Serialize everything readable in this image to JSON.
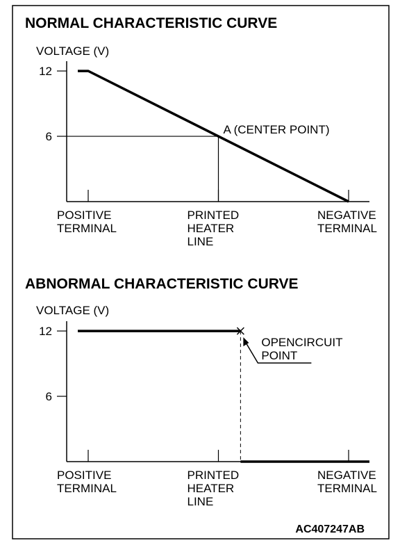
{
  "chart_data": [
    {
      "type": "line",
      "title": "NORMAL CHARACTERISTIC CURVE",
      "y_label": "VOLTAGE (V)",
      "xlim": [
        -0.16,
        2.16
      ],
      "xticks": [
        {
          "value": 0,
          "label": "POSITIVE TERMINAL"
        },
        {
          "value": 1,
          "label": "PRINTED HEATER LINE"
        },
        {
          "value": 2,
          "label": "NEGATIVE TERMINAL"
        }
      ],
      "ylim": [
        0,
        12.9
      ],
      "yticks": [
        6,
        12
      ],
      "series": [
        {
          "name": null,
          "color": "#000000",
          "x": [
            -0.08,
            0,
            2
          ],
          "values": [
            12,
            12,
            0
          ]
        }
      ],
      "annotations": [
        {
          "text": "A (CENTER POINT)",
          "x": 1,
          "y": 6
        }
      ]
    },
    {
      "type": "line",
      "title": "ABNORMAL CHARACTERISTIC CURVE",
      "y_label": "VOLTAGE (V)",
      "xlim": [
        -0.16,
        2.16
      ],
      "xticks": [
        {
          "value": 0,
          "label": "POSITIVE TERMINAL"
        },
        {
          "value": 1,
          "label": "PRINTED HEATER LINE"
        },
        {
          "value": 2,
          "label": "NEGATIVE TERMINAL"
        }
      ],
      "ylim": [
        0,
        12.9
      ],
      "yticks": [
        6,
        12
      ],
      "series": [
        {
          "name": null,
          "color": "#000000",
          "x": [
            -0.08,
            1.17,
            null,
            1.17,
            2.16
          ],
          "values": [
            12,
            12,
            null,
            0,
            0
          ]
        }
      ],
      "open_point": {
        "text": "OPENCIRCUIT POINT",
        "x": 1.17,
        "y": 12
      }
    }
  ],
  "footer": "AC407247AB"
}
